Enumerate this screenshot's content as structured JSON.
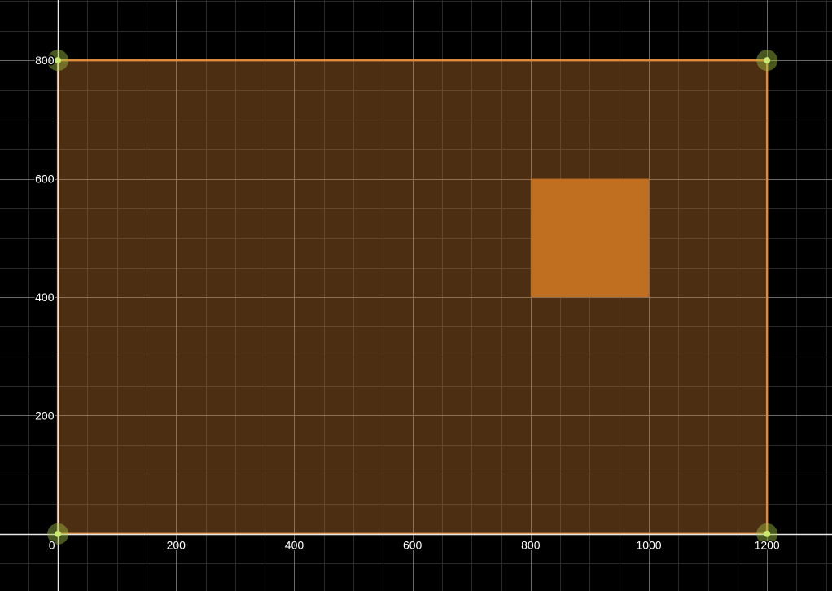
{
  "graph": {
    "background_color": "#000000",
    "grid": true,
    "x_axis": {
      "range": [
        -98,
        1310
      ],
      "major_step": 200,
      "minor_step": 50,
      "tick_labels": [
        "0",
        "200",
        "400",
        "600",
        "800",
        "1000",
        "1200"
      ]
    },
    "y_axis": {
      "range": [
        -96.5,
        902
      ],
      "major_step": 200,
      "minor_step": 50,
      "tick_labels": [
        "200",
        "400",
        "600",
        "800"
      ]
    },
    "shapes": [
      {
        "name": "outer-rectangle",
        "x_range": [
          0,
          1200
        ],
        "y_range": [
          0,
          800
        ],
        "fill_color": "#c87a30",
        "fill_opacity": 0.38,
        "stroke_color": "#e08a3c"
      },
      {
        "name": "inner-square",
        "x_range": [
          800,
          1000
        ],
        "y_range": [
          400,
          600
        ],
        "fill_color": "#c06e20",
        "fill_opacity": 1
      }
    ],
    "points": [
      {
        "x": 0,
        "y": 800
      },
      {
        "x": 1200,
        "y": 800
      },
      {
        "x": 0,
        "y": 0
      },
      {
        "x": 1200,
        "y": 0
      }
    ],
    "point_color": "#c8e870",
    "point_halo_color": "#a0c040"
  }
}
